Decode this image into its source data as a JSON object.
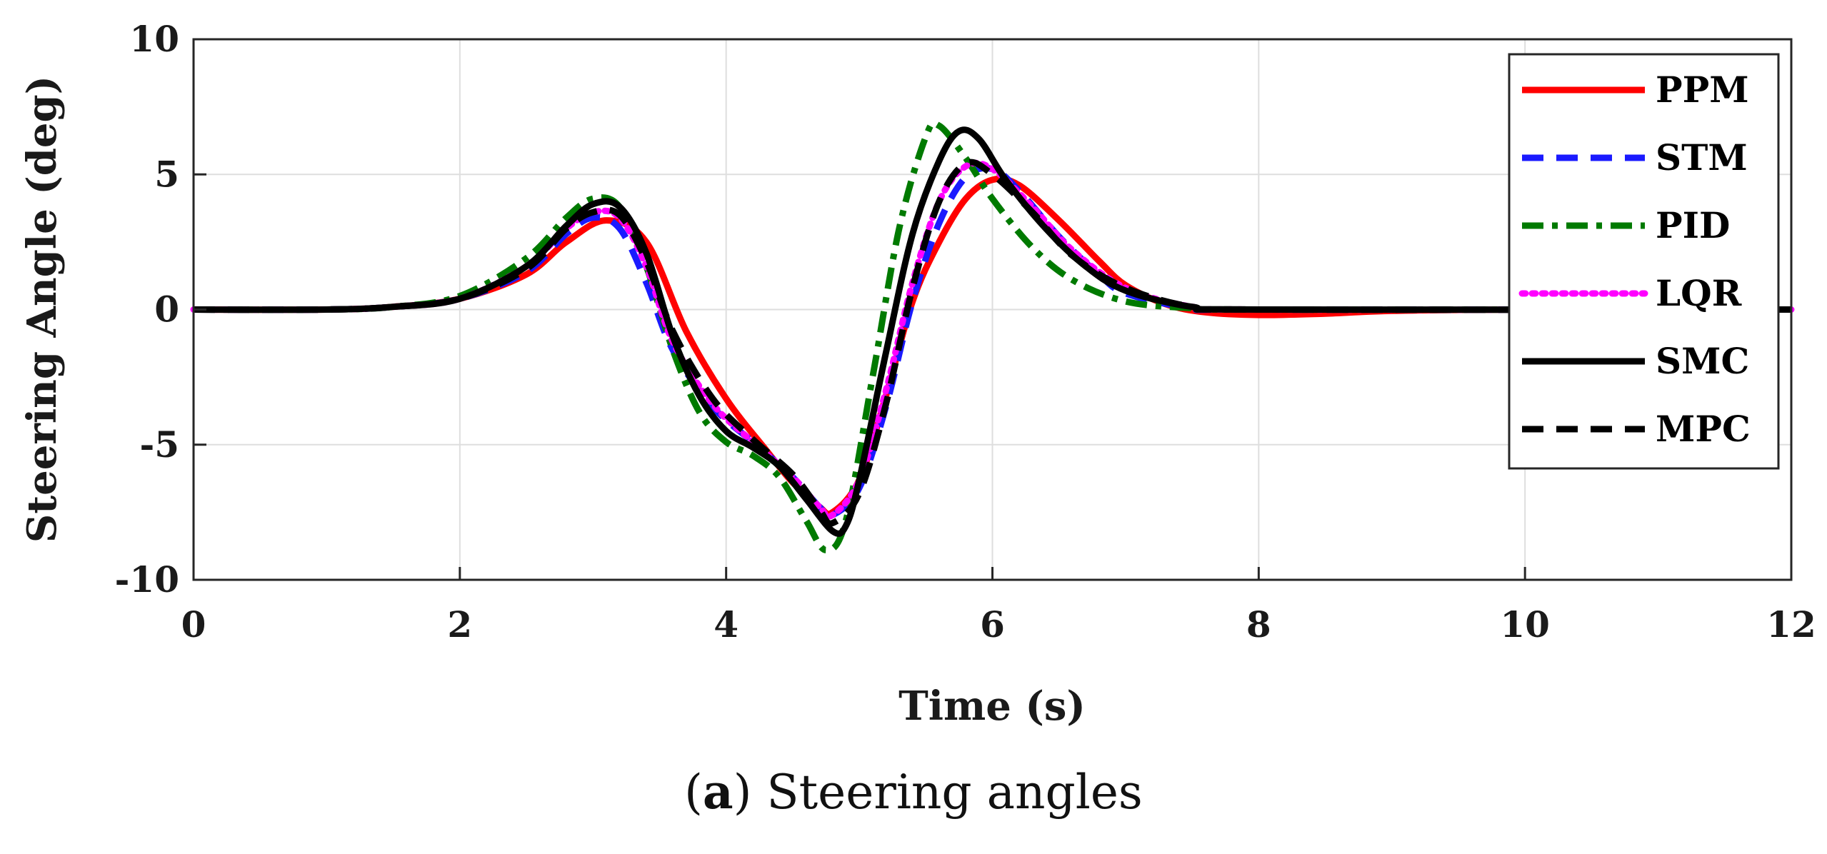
{
  "chart_data": {
    "type": "line",
    "xlabel": "Time (s)",
    "ylabel": "Steering Angle (deg)",
    "xlim": [
      0,
      12
    ],
    "ylim": [
      -10,
      10
    ],
    "xticks": [
      0,
      2,
      4,
      6,
      8,
      10,
      12
    ],
    "yticks": [
      -10,
      -5,
      0,
      5,
      10
    ],
    "grid": true,
    "legend_position": "top-right",
    "series": [
      {
        "name": "PPM",
        "color": "#ff0000",
        "style": "solid",
        "x": [
          0,
          1,
          1.5,
          2,
          2.5,
          2.8,
          3.1,
          3.4,
          3.7,
          4.0,
          4.3,
          4.5,
          4.7,
          4.8,
          5.0,
          5.2,
          5.4,
          5.6,
          5.8,
          6.0,
          6.2,
          6.5,
          6.8,
          7.0,
          7.3,
          7.6,
          8.0,
          8.5,
          9,
          10,
          12
        ],
        "y": [
          0,
          0,
          0.1,
          0.4,
          1.3,
          2.5,
          3.3,
          2.5,
          -0.8,
          -3.3,
          -5.2,
          -6.4,
          -7.3,
          -7.5,
          -6.3,
          -3.2,
          0.3,
          2.5,
          4.1,
          4.8,
          4.6,
          3.3,
          1.8,
          0.9,
          0.2,
          -0.1,
          -0.2,
          -0.15,
          -0.05,
          0,
          0
        ]
      },
      {
        "name": "STM",
        "color": "#1a1aff",
        "style": "dashed",
        "x": [
          0,
          1,
          1.5,
          2,
          2.5,
          2.8,
          3.0,
          3.2,
          3.4,
          3.6,
          3.9,
          4.2,
          4.5,
          4.7,
          4.8,
          5.0,
          5.2,
          5.4,
          5.6,
          5.8,
          6.0,
          6.2,
          6.5,
          6.8,
          7.0,
          7.5,
          8,
          12
        ],
        "y": [
          0,
          0,
          0.1,
          0.4,
          1.4,
          2.8,
          3.4,
          3.0,
          1.0,
          -1.5,
          -3.6,
          -4.9,
          -6.2,
          -7.3,
          -7.6,
          -6.6,
          -3.6,
          0.3,
          3.2,
          4.9,
          5.2,
          4.4,
          2.7,
          1.3,
          0.6,
          0.05,
          0,
          0
        ]
      },
      {
        "name": "PID",
        "color": "#007a00",
        "style": "dashdot",
        "x": [
          0,
          1,
          1.5,
          2,
          2.5,
          2.8,
          3.0,
          3.2,
          3.4,
          3.6,
          3.8,
          4.0,
          4.2,
          4.4,
          4.6,
          4.75,
          4.9,
          5.1,
          5.3,
          5.5,
          5.6,
          5.8,
          6.0,
          6.3,
          6.6,
          7.0,
          7.5,
          8,
          12
        ],
        "y": [
          0,
          0,
          0.1,
          0.5,
          1.9,
          3.4,
          4.1,
          3.8,
          1.6,
          -1.5,
          -3.8,
          -4.9,
          -5.4,
          -6.2,
          -7.8,
          -8.9,
          -7.8,
          -2.5,
          3.0,
          6.4,
          6.8,
          5.6,
          4.1,
          2.3,
          1.1,
          0.3,
          0.05,
          0,
          0
        ]
      },
      {
        "name": "LQR",
        "color": "#ff00ff",
        "style": "dotted",
        "x": [
          0,
          1,
          1.5,
          2,
          2.5,
          2.8,
          3.0,
          3.2,
          3.4,
          3.6,
          3.9,
          4.2,
          4.5,
          4.7,
          4.8,
          5.0,
          5.2,
          5.4,
          5.6,
          5.8,
          6.0,
          6.3,
          6.6,
          7.0,
          7.5,
          8,
          12
        ],
        "y": [
          0,
          0,
          0.1,
          0.4,
          1.6,
          3.0,
          3.6,
          3.4,
          1.6,
          -1.2,
          -3.5,
          -4.9,
          -6.2,
          -7.3,
          -7.6,
          -6.3,
          -3.0,
          1.0,
          4.0,
          5.3,
          5.2,
          3.8,
          2.2,
          0.8,
          0.1,
          0,
          0
        ]
      },
      {
        "name": "SMC",
        "color": "#000000",
        "style": "solid",
        "x": [
          0,
          1,
          1.5,
          2,
          2.5,
          2.8,
          3.0,
          3.2,
          3.4,
          3.6,
          3.8,
          4.0,
          4.2,
          4.4,
          4.6,
          4.8,
          4.9,
          5.0,
          5.2,
          5.4,
          5.6,
          5.75,
          5.9,
          6.1,
          6.4,
          6.7,
          7.0,
          7.5,
          8,
          12
        ],
        "y": [
          0,
          0,
          0.1,
          0.4,
          1.6,
          3.1,
          3.9,
          3.8,
          2.1,
          -1.0,
          -3.2,
          -4.5,
          -5.1,
          -5.8,
          -7.0,
          -8.2,
          -8.0,
          -6.3,
          -1.6,
          2.8,
          5.5,
          6.6,
          6.3,
          4.8,
          3.0,
          1.6,
          0.7,
          0.1,
          0,
          0
        ]
      },
      {
        "name": "MPC",
        "color": "#000000",
        "style": "dashed",
        "x": [
          0,
          1,
          1.5,
          2,
          2.5,
          2.8,
          3.0,
          3.2,
          3.4,
          3.6,
          3.9,
          4.2,
          4.5,
          4.7,
          4.8,
          5.0,
          5.2,
          5.4,
          5.6,
          5.8,
          6.0,
          6.3,
          6.6,
          7.0,
          7.5,
          8,
          12
        ],
        "y": [
          0,
          0,
          0.1,
          0.4,
          1.5,
          3.0,
          3.6,
          3.5,
          1.8,
          -0.8,
          -3.3,
          -4.8,
          -6.1,
          -7.4,
          -7.9,
          -6.8,
          -3.5,
          0.8,
          4.0,
          5.4,
          5.0,
          3.6,
          2.0,
          0.8,
          0.1,
          0,
          0
        ]
      }
    ]
  },
  "caption": {
    "prefix_open": "(",
    "letter": "a",
    "prefix_close": ")",
    "text": " Steering angles"
  }
}
